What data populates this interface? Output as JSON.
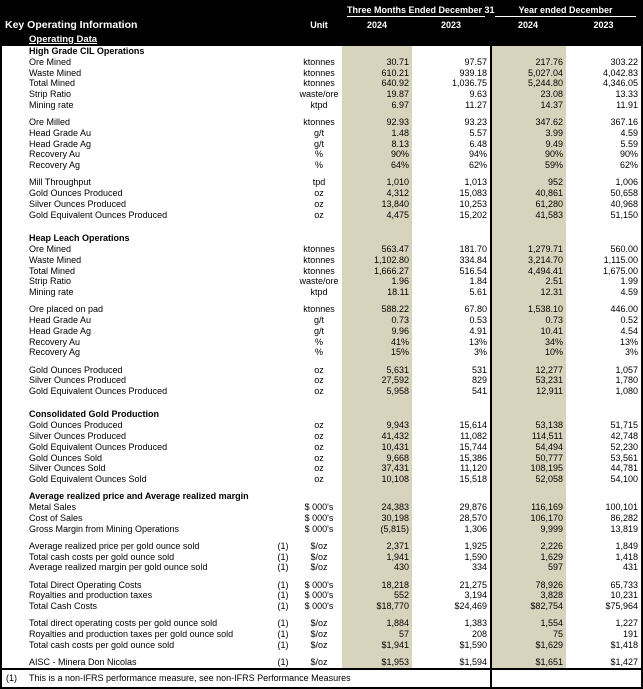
{
  "header": {
    "title": "Key Operating Information",
    "subtitle": "Operating Data",
    "unit_label": "Unit",
    "group_quarter": "Three Months Ended December 31",
    "group_year": "Year ended December",
    "years": [
      "2024",
      "2023",
      "2024",
      "2023"
    ]
  },
  "colors": {
    "banner_bg": "#000000",
    "banner_text": "#ffffff",
    "highlight_column": "#d8d3bd",
    "body_bg": "#ffffff",
    "text": "#000000"
  },
  "rows": [
    {
      "t": "s",
      "l": "High Grade CIL Operations"
    },
    {
      "t": "d",
      "l": "Ore Mined",
      "u": "ktonnes",
      "v": [
        "30.71",
        "97.57",
        "217.76",
        "303.22"
      ]
    },
    {
      "t": "d",
      "l": "Waste Mined",
      "u": "ktonnes",
      "v": [
        "610.21",
        "939.18",
        "5,027.04",
        "4,042.83"
      ]
    },
    {
      "t": "d",
      "l": "Total Mined",
      "u": "ktonnes",
      "v": [
        "640.92",
        "1,036.75",
        "5,244.80",
        "4,346.05"
      ]
    },
    {
      "t": "d",
      "l": "Strip Ratio",
      "u": "waste/ore",
      "v": [
        "19.87",
        "9.63",
        "23.08",
        "13.33"
      ]
    },
    {
      "t": "d",
      "l": "Mining rate",
      "u": "ktpd",
      "v": [
        "6.97",
        "11.27",
        "14.37",
        "11.91"
      ]
    },
    {
      "t": "b"
    },
    {
      "t": "d",
      "l": "Ore Milled",
      "u": "ktonnes",
      "v": [
        "92.93",
        "93.23",
        "347.62",
        "367.16"
      ]
    },
    {
      "t": "d",
      "l": "Head Grade Au",
      "u": "g/t",
      "v": [
        "1.48",
        "5.57",
        "3.99",
        "4.59"
      ]
    },
    {
      "t": "d",
      "l": "Head Grade Ag",
      "u": "g/t",
      "v": [
        "8.13",
        "6.48",
        "9.49",
        "5.59"
      ]
    },
    {
      "t": "d",
      "l": "Recovery Au",
      "u": "%",
      "v": [
        "90%",
        "94%",
        "90%",
        "90%"
      ]
    },
    {
      "t": "d",
      "l": "Recovery Ag",
      "u": "%",
      "v": [
        "64%",
        "62%",
        "59%",
        "62%"
      ]
    },
    {
      "t": "b"
    },
    {
      "t": "d",
      "l": "Mill Throughput",
      "u": "tpd",
      "v": [
        "1,010",
        "1,013",
        "952",
        "1,006"
      ]
    },
    {
      "t": "d",
      "l": "Gold Ounces Produced",
      "u": "oz",
      "v": [
        "4,312",
        "15,083",
        "40,861",
        "50,658"
      ]
    },
    {
      "t": "d",
      "l": "Silver Ounces Produced",
      "u": "oz",
      "v": [
        "13,840",
        "10,253",
        "61,280",
        "40,968"
      ]
    },
    {
      "t": "d",
      "l": "Gold Equivalent Ounces Produced",
      "u": "oz",
      "v": [
        "4,475",
        "15,202",
        "41,583",
        "51,150"
      ]
    },
    {
      "t": "b"
    },
    {
      "t": "b"
    },
    {
      "t": "s",
      "l": "Heap Leach Operations"
    },
    {
      "t": "d",
      "l": "Ore Mined",
      "u": "ktonnes",
      "v": [
        "563.47",
        "181.70",
        "1,279.71",
        "560.00"
      ]
    },
    {
      "t": "d",
      "l": "Waste Mined",
      "u": "ktonnes",
      "v": [
        "1,102.80",
        "334.84",
        "3,214.70",
        "1,115.00"
      ]
    },
    {
      "t": "d",
      "l": "Total Mined",
      "u": "ktonnes",
      "v": [
        "1,666.27",
        "516.54",
        "4,494.41",
        "1,675.00"
      ]
    },
    {
      "t": "d",
      "l": "Strip Ratio",
      "u": "waste/ore",
      "v": [
        "1.96",
        "1.84",
        "2.51",
        "1.99"
      ]
    },
    {
      "t": "d",
      "l": "Mining rate",
      "u": "ktpd",
      "v": [
        "18.11",
        "5.61",
        "12.31",
        "4.59"
      ]
    },
    {
      "t": "b"
    },
    {
      "t": "d",
      "l": "Ore placed on pad",
      "u": "ktonnes",
      "v": [
        "588.22",
        "67.80",
        "1,538.10",
        "446.00"
      ]
    },
    {
      "t": "d",
      "l": "Head Grade Au",
      "u": "g/t",
      "v": [
        "0.73",
        "0.53",
        "0.73",
        "0.52"
      ]
    },
    {
      "t": "d",
      "l": "Head Grade Ag",
      "u": "g/t",
      "v": [
        "9.96",
        "4.91",
        "10.41",
        "4.54"
      ]
    },
    {
      "t": "d",
      "l": "Recovery Au",
      "u": "%",
      "v": [
        "41%",
        "13%",
        "34%",
        "13%"
      ]
    },
    {
      "t": "d",
      "l": "Recovery Ag",
      "u": "%",
      "v": [
        "15%",
        "3%",
        "10%",
        "3%"
      ]
    },
    {
      "t": "b"
    },
    {
      "t": "d",
      "l": "Gold Ounces Produced",
      "u": "oz",
      "v": [
        "5,631",
        "531",
        "12,277",
        "1,057"
      ]
    },
    {
      "t": "d",
      "l": "Silver Ounces Produced",
      "u": "oz",
      "v": [
        "27,592",
        "829",
        "53,231",
        "1,780"
      ]
    },
    {
      "t": "d",
      "l": "Gold Equivalent Ounces Produced",
      "u": "oz",
      "v": [
        "5,958",
        "541",
        "12,911",
        "1,080"
      ]
    },
    {
      "t": "b"
    },
    {
      "t": "b"
    },
    {
      "t": "s",
      "l": "Consolidated Gold Production"
    },
    {
      "t": "d",
      "l": "Gold Ounces Produced",
      "u": "oz",
      "v": [
        "9,943",
        "15,614",
        "53,138",
        "51,715"
      ]
    },
    {
      "t": "d",
      "l": "Silver Ounces Produced",
      "u": "oz",
      "v": [
        "41,432",
        "11,082",
        "114,511",
        "42,748"
      ]
    },
    {
      "t": "d",
      "l": "Gold Equivalent Ounces Produced",
      "u": "oz",
      "v": [
        "10,431",
        "15,744",
        "54,494",
        "52,230"
      ]
    },
    {
      "t": "d",
      "l": "Gold Ounces Sold",
      "u": "oz",
      "v": [
        "9,668",
        "15,386",
        "50,777",
        "53,561"
      ]
    },
    {
      "t": "d",
      "l": "Silver Ounces Sold",
      "u": "oz",
      "v": [
        "37,431",
        "11,120",
        "108,195",
        "44,781"
      ]
    },
    {
      "t": "d",
      "l": "Gold Equivalent Ounces Sold",
      "u": "oz",
      "v": [
        "10,108",
        "15,518",
        "52,058",
        "54,100"
      ]
    },
    {
      "t": "b"
    },
    {
      "t": "s",
      "l": "Average realized price and Average realized margin"
    },
    {
      "t": "d",
      "l": "Metal Sales",
      "u": "$ 000's",
      "v": [
        "24,383",
        "29,876",
        "116,169",
        "100,101"
      ]
    },
    {
      "t": "d",
      "l": "Cost of Sales",
      "u": "$ 000's",
      "v": [
        "30,198",
        "28,570",
        "106,170",
        "86,282"
      ]
    },
    {
      "t": "d",
      "l": "Gross Margin from Mining Operations",
      "u": "$ 000's",
      "v": [
        "(5,815)",
        "1,306",
        "9,999",
        "13,819"
      ]
    },
    {
      "t": "b"
    },
    {
      "t": "d",
      "l": "Average realized price per gold ounce sold",
      "n": "(1)",
      "u": "$/oz",
      "v": [
        "2,371",
        "1,925",
        "2,226",
        "1,849"
      ]
    },
    {
      "t": "d",
      "l": "Total cash costs per gold ounce sold",
      "n": "(1)",
      "u": "$/oz",
      "v": [
        "1,941",
        "1,590",
        "1,629",
        "1,418"
      ]
    },
    {
      "t": "d",
      "l": "Average realized margin per gold ounce sold",
      "n": "(1)",
      "u": "$/oz",
      "v": [
        "430",
        "334",
        "597",
        "431"
      ]
    },
    {
      "t": "b"
    },
    {
      "t": "d",
      "l": "Total Direct Operating Costs",
      "n": "(1)",
      "u": "$ 000's",
      "v": [
        "18,218",
        "21,275",
        "78,926",
        "65,733"
      ]
    },
    {
      "t": "d",
      "l": "Royalties and production taxes",
      "n": "(1)",
      "u": "$ 000's",
      "v": [
        "552",
        "3,194",
        "3,828",
        "10,231"
      ]
    },
    {
      "t": "d",
      "l": "Total Cash Costs",
      "n": "(1)",
      "u": "$ 000's",
      "v": [
        "$18,770",
        "$24,469",
        "$82,754",
        "$75,964"
      ]
    },
    {
      "t": "b"
    },
    {
      "t": "d",
      "l": "Total direct operating costs per gold ounce sold",
      "n": "(1)",
      "u": "$/oz",
      "v": [
        "1,884",
        "1,383",
        "1,554",
        "1,227"
      ]
    },
    {
      "t": "d",
      "l": "Royalties and production taxes per gold ounce sold",
      "n": "(1)",
      "u": "$/oz",
      "v": [
        "57",
        "208",
        "75",
        "191"
      ]
    },
    {
      "t": "d",
      "l": "Total cash costs per gold ounce sold",
      "n": "(1)",
      "u": "$/oz",
      "v": [
        "$1,941",
        "$1,590",
        "$1,629",
        "$1,418"
      ]
    },
    {
      "t": "b"
    },
    {
      "t": "d",
      "l": "AISC - Minera Don Nicolas",
      "n": "(1)",
      "u": "$/oz",
      "v": [
        "$1,953",
        "$1,594",
        "$1,651",
        "$1,427"
      ]
    }
  ],
  "footnote": {
    "marker": "(1)",
    "text": "This is a non-IFRS performance measure, see non-IFRS Performance Measures"
  }
}
